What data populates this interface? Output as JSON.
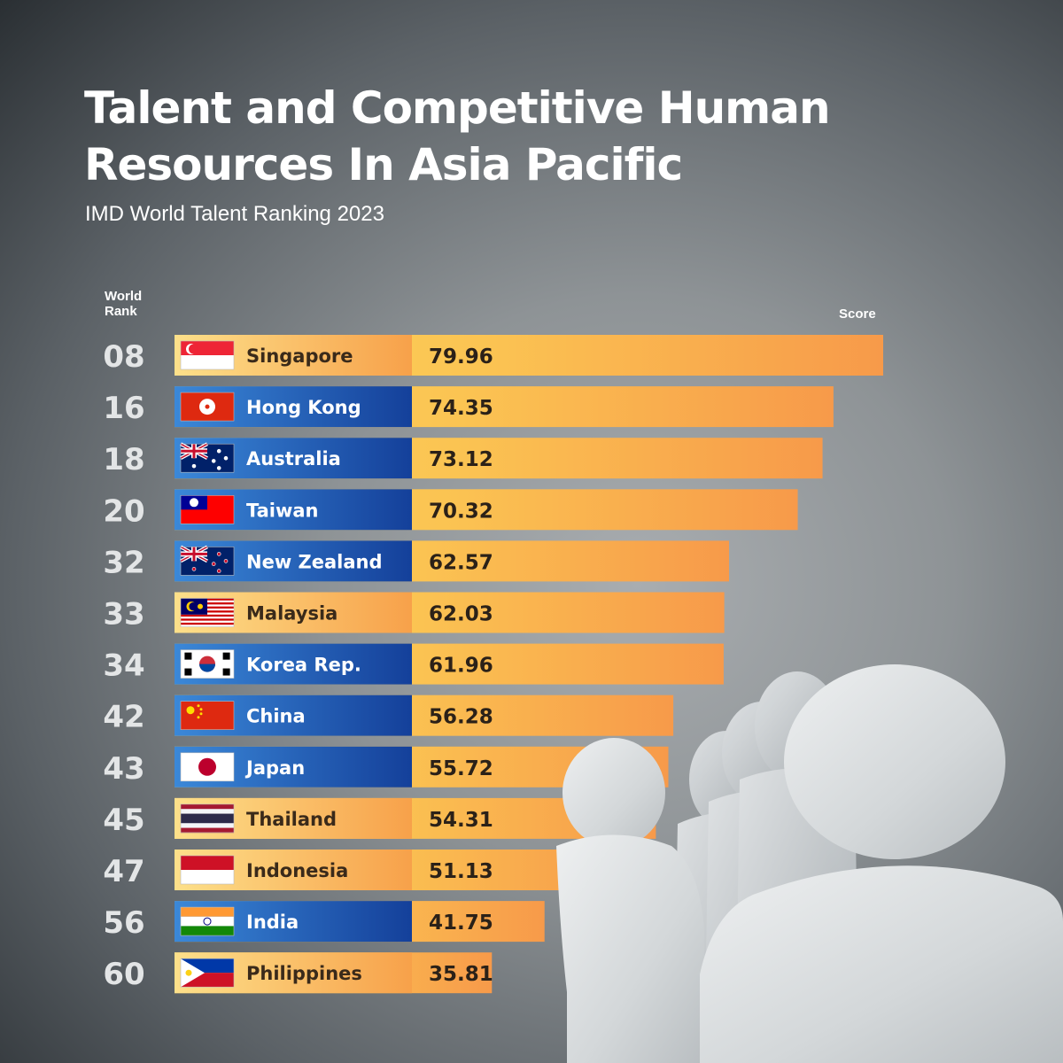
{
  "title_line1": "Talent and Competitive Human",
  "title_line2": "Resources In Asia Pacific",
  "subtitle": "IMD World Talent Ranking 2023",
  "rank_header_line1": "World",
  "rank_header_line2": "Rank",
  "score_header": "Score",
  "colors": {
    "orange": "#f7a14a",
    "yellow": "#fbd55c",
    "blue": "#1f5cb3",
    "rank_text": "#e3e5e6"
  },
  "chart_data": {
    "type": "bar",
    "orientation": "horizontal",
    "title": "Talent and Competitive Human Resources In Asia Pacific",
    "subtitle": "IMD World Talent Ranking 2023",
    "xlabel": "Score",
    "ylabel": "World Rank",
    "xlim": [
      0,
      80
    ],
    "grid": false,
    "rows": [
      {
        "rank": "08",
        "country": "Singapore",
        "score": 79.96,
        "flag": "singapore-flag",
        "label_style": "orange"
      },
      {
        "rank": "16",
        "country": "Hong Kong",
        "score": 74.35,
        "flag": "hong-kong-flag",
        "label_style": "blue"
      },
      {
        "rank": "18",
        "country": "Australia",
        "score": 73.12,
        "flag": "australia-flag",
        "label_style": "blue"
      },
      {
        "rank": "20",
        "country": "Taiwan",
        "score": 70.32,
        "flag": "taiwan-flag",
        "label_style": "blue"
      },
      {
        "rank": "32",
        "country": "New Zealand",
        "score": 62.57,
        "flag": "new-zealand-flag",
        "label_style": "blue"
      },
      {
        "rank": "33",
        "country": "Malaysia",
        "score": 62.03,
        "flag": "malaysia-flag",
        "label_style": "orange"
      },
      {
        "rank": "34",
        "country": "Korea Rep.",
        "score": 61.96,
        "flag": "korea-flag",
        "label_style": "blue"
      },
      {
        "rank": "42",
        "country": "China",
        "score": 56.28,
        "flag": "china-flag",
        "label_style": "blue"
      },
      {
        "rank": "43",
        "country": "Japan",
        "score": 55.72,
        "flag": "japan-flag",
        "label_style": "blue"
      },
      {
        "rank": "45",
        "country": "Thailand",
        "score": 54.31,
        "flag": "thailand-flag",
        "label_style": "orange"
      },
      {
        "rank": "47",
        "country": "Indonesia",
        "score": 51.13,
        "flag": "indonesia-flag",
        "label_style": "orange"
      },
      {
        "rank": "56",
        "country": "India",
        "score": 41.75,
        "flag": "india-flag",
        "label_style": "blue"
      },
      {
        "rank": "60",
        "country": "Philippines",
        "score": 35.81,
        "flag": "philippines-flag",
        "label_style": "orange"
      }
    ]
  }
}
